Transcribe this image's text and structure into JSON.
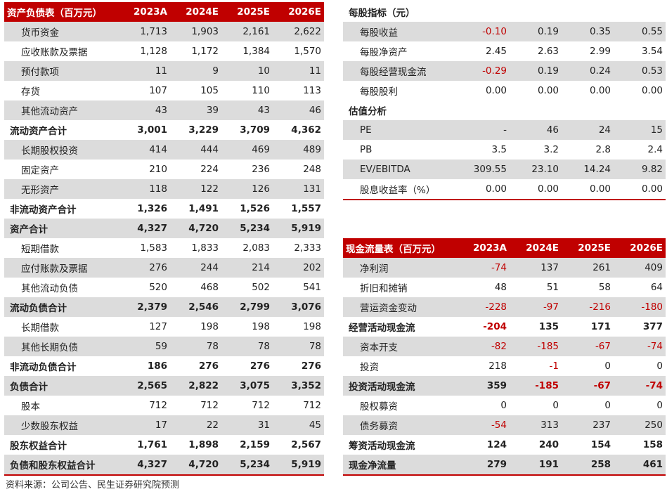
{
  "balance_sheet": {
    "title": "资产负债表（百万元）",
    "years": [
      "2023A",
      "2024E",
      "2025E",
      "2026E"
    ],
    "rows": [
      {
        "label": "货币资金",
        "values": [
          "1,713",
          "1,903",
          "2,161",
          "2,622"
        ],
        "bold": false
      },
      {
        "label": "应收账款及票据",
        "values": [
          "1,128",
          "1,172",
          "1,384",
          "1,570"
        ],
        "bold": false
      },
      {
        "label": "预付款项",
        "values": [
          "11",
          "9",
          "10",
          "11"
        ],
        "bold": false
      },
      {
        "label": "存货",
        "values": [
          "107",
          "105",
          "110",
          "113"
        ],
        "bold": false
      },
      {
        "label": "其他流动资产",
        "values": [
          "43",
          "39",
          "43",
          "46"
        ],
        "bold": false
      },
      {
        "label": "流动资产合计",
        "values": [
          "3,001",
          "3,229",
          "3,709",
          "4,362"
        ],
        "bold": true
      },
      {
        "label": "长期股权投资",
        "values": [
          "414",
          "444",
          "469",
          "489"
        ],
        "bold": false
      },
      {
        "label": "固定资产",
        "values": [
          "210",
          "224",
          "236",
          "248"
        ],
        "bold": false
      },
      {
        "label": "无形资产",
        "values": [
          "118",
          "122",
          "126",
          "131"
        ],
        "bold": false
      },
      {
        "label": "非流动资产合计",
        "values": [
          "1,326",
          "1,491",
          "1,526",
          "1,557"
        ],
        "bold": true
      },
      {
        "label": "资产合计",
        "values": [
          "4,327",
          "4,720",
          "5,234",
          "5,919"
        ],
        "bold": true
      },
      {
        "label": "短期借款",
        "values": [
          "1,583",
          "1,833",
          "2,083",
          "2,333"
        ],
        "bold": false
      },
      {
        "label": "应付账款及票据",
        "values": [
          "276",
          "244",
          "214",
          "202"
        ],
        "bold": false
      },
      {
        "label": "其他流动负债",
        "values": [
          "520",
          "468",
          "502",
          "541"
        ],
        "bold": false
      },
      {
        "label": "流动负债合计",
        "values": [
          "2,379",
          "2,546",
          "2,799",
          "3,076"
        ],
        "bold": true
      },
      {
        "label": "长期借款",
        "values": [
          "127",
          "198",
          "198",
          "198"
        ],
        "bold": false
      },
      {
        "label": "其他长期负债",
        "values": [
          "59",
          "78",
          "78",
          "78"
        ],
        "bold": false
      },
      {
        "label": "非流动负债合计",
        "values": [
          "186",
          "276",
          "276",
          "276"
        ],
        "bold": true
      },
      {
        "label": "负债合计",
        "values": [
          "2,565",
          "2,822",
          "3,075",
          "3,352"
        ],
        "bold": true
      },
      {
        "label": "股本",
        "values": [
          "712",
          "712",
          "712",
          "712"
        ],
        "bold": false
      },
      {
        "label": "少数股东权益",
        "values": [
          "17",
          "22",
          "31",
          "45"
        ],
        "bold": false
      },
      {
        "label": "股东权益合计",
        "values": [
          "1,761",
          "1,898",
          "2,159",
          "2,567"
        ],
        "bold": true
      },
      {
        "label": "负债和股东权益合计",
        "values": [
          "4,327",
          "4,720",
          "5,234",
          "5,919"
        ],
        "bold": true
      }
    ]
  },
  "per_share": {
    "title": "每股指标（元）",
    "rows": [
      {
        "label": "每股收益",
        "values": [
          "-0.10",
          "0.19",
          "0.35",
          "0.55"
        ]
      },
      {
        "label": "每股净资产",
        "values": [
          "2.45",
          "2.63",
          "2.99",
          "3.54"
        ]
      },
      {
        "label": "每股经营现金流",
        "values": [
          "-0.29",
          "0.19",
          "0.24",
          "0.53"
        ]
      },
      {
        "label": "每股股利",
        "values": [
          "0.00",
          "0.00",
          "0.00",
          "0.00"
        ]
      }
    ],
    "valuation_title": "估值分析",
    "valuation_rows": [
      {
        "label": "PE",
        "values": [
          "-",
          "46",
          "24",
          "15"
        ]
      },
      {
        "label": "PB",
        "values": [
          "3.5",
          "3.2",
          "2.8",
          "2.4"
        ]
      },
      {
        "label": "EV/EBITDA",
        "values": [
          "309.55",
          "23.10",
          "14.24",
          "9.82"
        ]
      },
      {
        "label": "股息收益率（%）",
        "values": [
          "0.00",
          "0.00",
          "0.00",
          "0.00"
        ]
      }
    ]
  },
  "cash_flow": {
    "title": "现金流量表（百万元）",
    "years": [
      "2023A",
      "2024E",
      "2025E",
      "2026E"
    ],
    "rows": [
      {
        "label": "净利润",
        "values": [
          "-74",
          "137",
          "261",
          "409"
        ],
        "bold": false
      },
      {
        "label": "折旧和摊销",
        "values": [
          "48",
          "51",
          "58",
          "64"
        ],
        "bold": false
      },
      {
        "label": "营运资金变动",
        "values": [
          "-228",
          "-97",
          "-216",
          "-180"
        ],
        "bold": false
      },
      {
        "label": "经营活动现金流",
        "values": [
          "-204",
          "135",
          "171",
          "377"
        ],
        "bold": true
      },
      {
        "label": "资本开支",
        "values": [
          "-82",
          "-185",
          "-67",
          "-74"
        ],
        "bold": false
      },
      {
        "label": "投资",
        "values": [
          "218",
          "-1",
          "0",
          "0"
        ],
        "bold": false
      },
      {
        "label": "投资活动现金流",
        "values": [
          "359",
          "-185",
          "-67",
          "-74"
        ],
        "bold": true
      },
      {
        "label": "股权募资",
        "values": [
          "0",
          "0",
          "0",
          "0"
        ],
        "bold": false
      },
      {
        "label": "债务募资",
        "values": [
          "-54",
          "313",
          "237",
          "250"
        ],
        "bold": false
      },
      {
        "label": "筹资活动现金流",
        "values": [
          "124",
          "240",
          "154",
          "158"
        ],
        "bold": true
      },
      {
        "label": "现金净流量",
        "values": [
          "279",
          "191",
          "258",
          "461"
        ],
        "bold": true
      }
    ]
  },
  "source_note": "资料来源：公司公告、民生证券研究院预测",
  "colors": {
    "accent": "#c00000",
    "alt_row": "#dcdcdc",
    "negative": "#c00000"
  }
}
